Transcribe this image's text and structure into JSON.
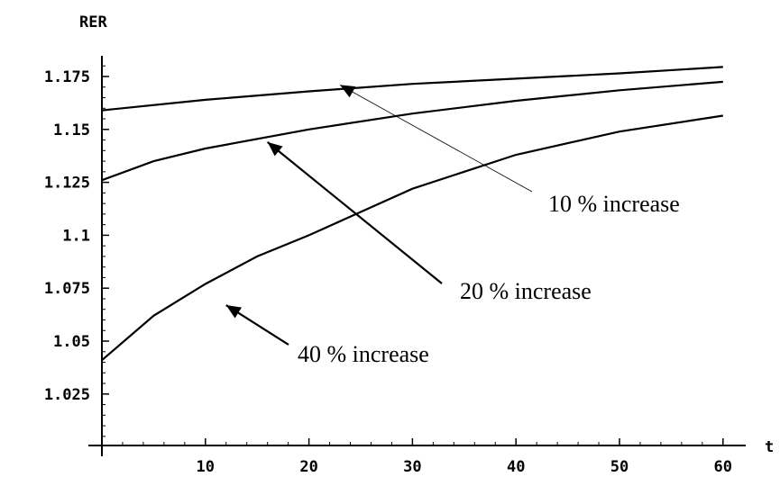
{
  "chart_data": {
    "type": "line",
    "title": "",
    "xlabel": "t",
    "ylabel": "RER",
    "xlim": [
      0,
      62
    ],
    "ylim": [
      1.0,
      1.185
    ],
    "grid": false,
    "xticks": [
      "10",
      "20",
      "30",
      "40",
      "50",
      "60"
    ],
    "xtick_values": [
      10,
      20,
      30,
      40,
      50,
      60
    ],
    "yticks": [
      "1.025",
      "1.05",
      "1.075",
      "1.1",
      "1.125",
      "1.15",
      "1.175"
    ],
    "ytick_values": [
      1.025,
      1.05,
      1.075,
      1.1,
      1.125,
      1.15,
      1.175
    ],
    "series": [
      {
        "name": "10 % increase",
        "x": [
          0,
          10,
          20,
          30,
          40,
          50,
          60
        ],
        "y": [
          1.159,
          1.164,
          1.168,
          1.1715,
          1.174,
          1.1765,
          1.1795
        ]
      },
      {
        "name": "20 % increase",
        "x": [
          0,
          5,
          10,
          20,
          30,
          40,
          50,
          60
        ],
        "y": [
          1.126,
          1.135,
          1.141,
          1.15,
          1.1575,
          1.1635,
          1.1685,
          1.1725
        ]
      },
      {
        "name": "40 % increase",
        "x": [
          0,
          5,
          10,
          15,
          20,
          25,
          30,
          40,
          50,
          60
        ],
        "y": [
          1.041,
          1.062,
          1.077,
          1.09,
          1.1,
          1.111,
          1.122,
          1.138,
          1.149,
          1.1565
        ]
      }
    ],
    "annotations": [
      {
        "text": "10 % increase",
        "target": [
          23,
          1.171
        ]
      },
      {
        "text": "20 % increase",
        "target": [
          16,
          1.144
        ]
      },
      {
        "text": "40 % increase",
        "target": [
          12,
          1.067
        ]
      }
    ]
  }
}
